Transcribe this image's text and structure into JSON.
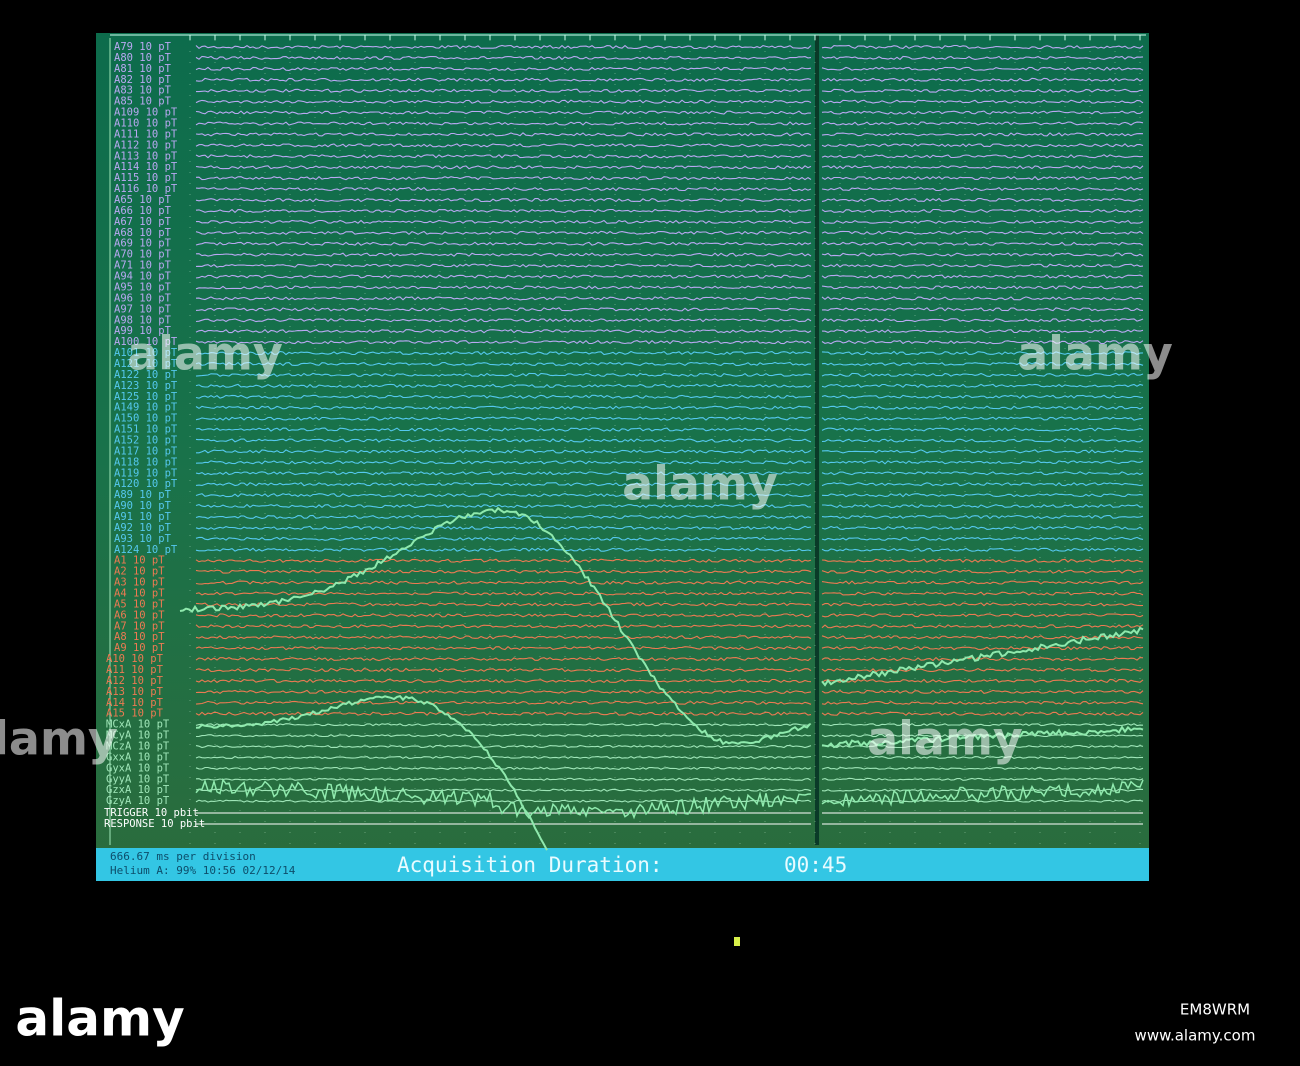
{
  "screen": {
    "channel_groups": [
      {
        "color": "#b9a8f2",
        "channels": [
          "A79 10 pT",
          "A80 10 pT",
          "A81 10 pT",
          "A82 10 pT",
          "A83 10 pT",
          "A85 10 pT",
          "A109 10 pT",
          "A110 10 pT",
          "A111 10 pT",
          "A112 10 pT",
          "A113 10 pT",
          "A114 10 pT",
          "A115 10 pT",
          "A116 10 pT",
          "A65 10 pT",
          "A66 10 pT",
          "A67 10 pT",
          "A68 10 pT",
          "A69 10 pT",
          "A70 10 pT",
          "A71 10 pT",
          "A94 10 pT",
          "A95 10 pT",
          "A96 10 pT",
          "A97 10 pT",
          "A98 10 pT",
          "A99 10 pT",
          "A100 10 pT"
        ]
      },
      {
        "color": "#55c8ee",
        "channels": [
          "A101 10 pT",
          "A121 10 pT",
          "A122 10 pT",
          "A123 10 pT",
          "A125 10 pT",
          "A149 10 pT",
          "A150 10 pT",
          "A151 10 pT",
          "A152 10 pT",
          "A117 10 pT",
          "A118 10 pT",
          "A119 10 pT",
          "A120 10 pT",
          "A89 10 pT",
          "A90 10 pT",
          "A91 10 pT",
          "A92 10 pT",
          "A93 10 pT",
          "A124 10 pT"
        ]
      },
      {
        "color": "#ec7a52",
        "channels": [
          "A1 10 pT",
          "A2 10 pT",
          "A3 10 pT",
          "A4 10 pT",
          "A5 10 pT",
          "A6 10 pT",
          "A7 10 pT",
          "A8 10 pT",
          "A9 10 pT",
          "A10 10 pT",
          "A11 10 pT",
          "A12 10 pT",
          "A13 10 pT",
          "A14 10 pT",
          "A15 10 pT"
        ]
      },
      {
        "color": "#9fe6b8",
        "channels": [
          "MCxA 10 pT",
          "MCyA 10 pT",
          "MCzA 10 pT",
          "GxxA 10 pT",
          "GyxA 10 pT",
          "GyyA 10 pT",
          "GzxA 10 pT",
          "GzyA 10 pT"
        ]
      },
      {
        "color": "#ffffff",
        "channels": [
          "TRIGGER 10 pbit",
          "RESPONSE 10 pbit"
        ]
      }
    ],
    "status": {
      "timebase": "666.67 ms per division",
      "helium": "Helium A: 99% 10:56 02/12/14",
      "duration_label": "Acquisition Duration:",
      "duration": "00:45"
    }
  },
  "watermark": {
    "overlays": [
      "alamy",
      "alamy",
      "alamy",
      "alamy",
      "alamy"
    ],
    "logo": "alamy",
    "image_id": "EM8WRM",
    "url": "www.alamy.com"
  }
}
